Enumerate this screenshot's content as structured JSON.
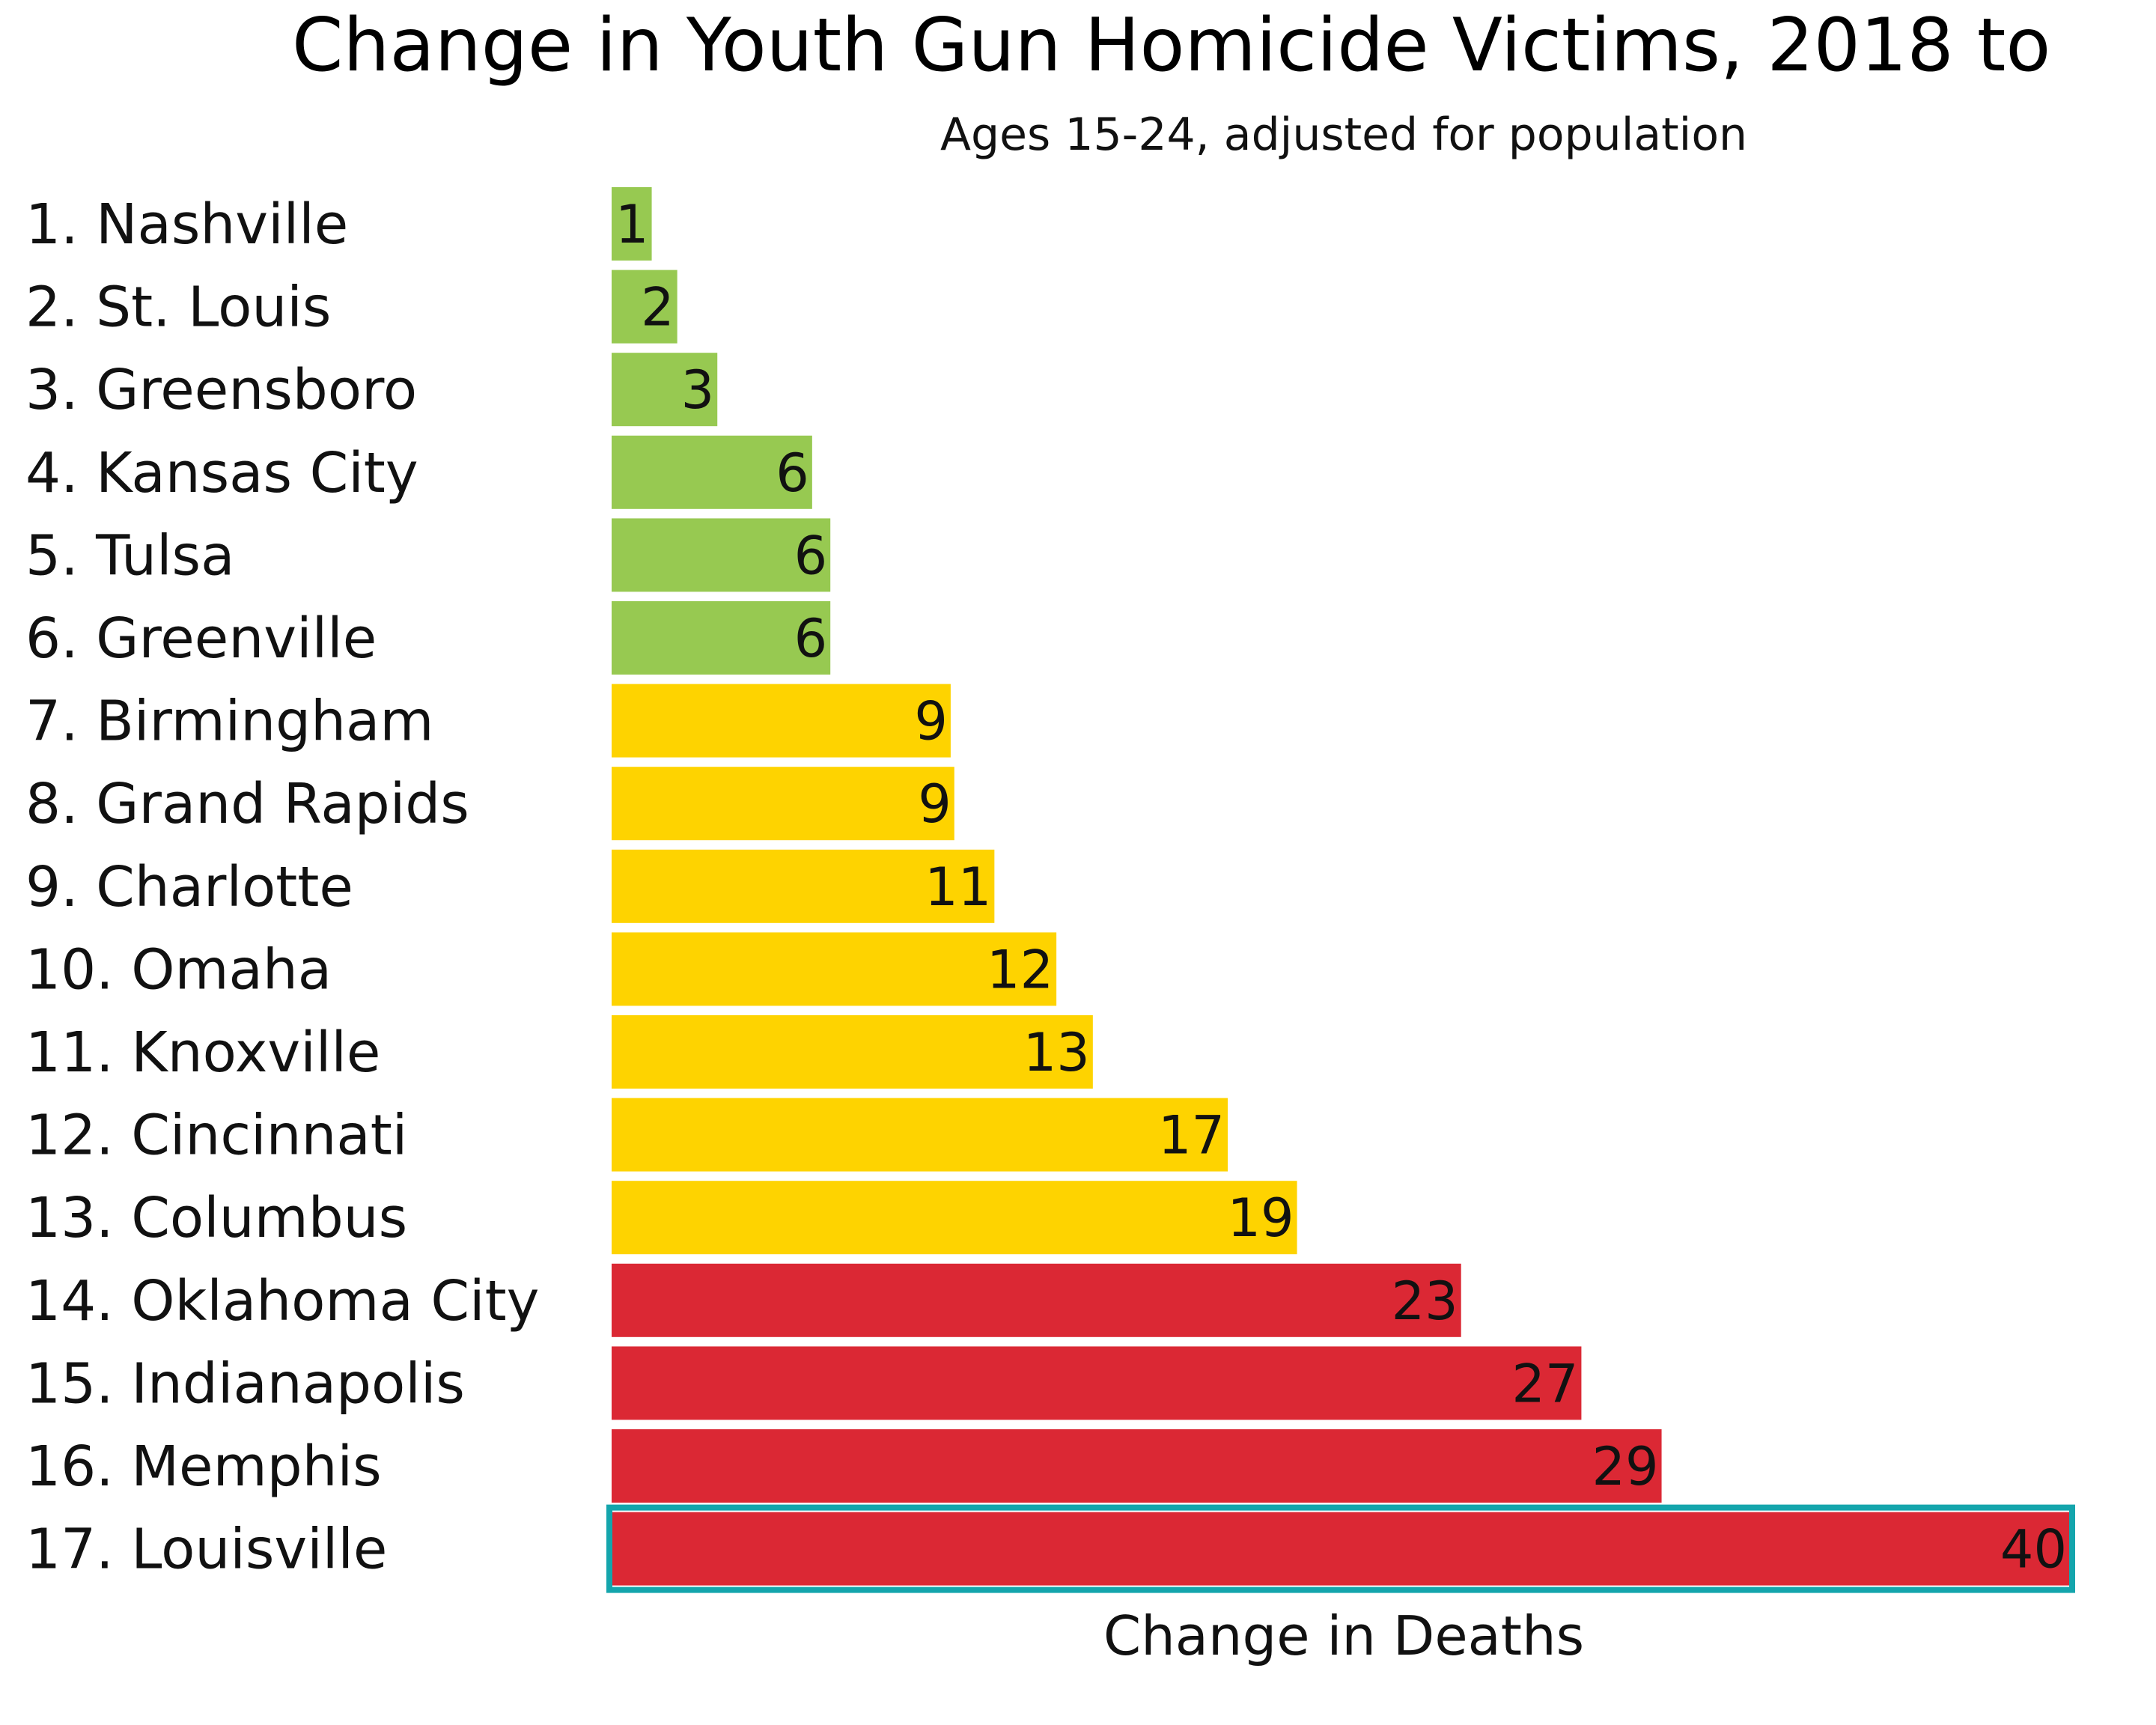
{
  "chart_data": {
    "type": "bar",
    "orientation": "horizontal",
    "title": "Change in Youth Gun Homicide Victims,  2018 to",
    "subtitle": "Ages 15-24, adjusted for population",
    "xlabel": "Change in Deaths",
    "ylabel": "",
    "xlim": [
      0,
      40
    ],
    "grid": false,
    "categories": [
      "1. Nashville",
      "2. St. Louis",
      "3. Greensboro",
      "4. Kansas City",
      "5. Tulsa",
      "6. Greenville",
      "7. Birmingham",
      "8. Grand Rapids",
      "9. Charlotte",
      "10. Omaha",
      "11. Knoxville",
      "12. Cincinnati",
      "13. Columbus",
      "14. Oklahoma City",
      "15. Indianapolis",
      "16. Memphis",
      "17. Louisville"
    ],
    "values": [
      1.1,
      1.8,
      2.9,
      5.5,
      6.0,
      6.0,
      9.3,
      9.4,
      10.5,
      12.2,
      13.2,
      16.9,
      18.8,
      23.3,
      26.6,
      28.8,
      40.0
    ],
    "value_labels": [
      "1",
      "2",
      "3",
      "6",
      "6",
      "6",
      "9",
      "9",
      "11",
      "12",
      "13",
      "17",
      "19",
      "23",
      "27",
      "29",
      "40"
    ],
    "bar_colors": [
      "green",
      "green",
      "green",
      "green",
      "green",
      "green",
      "yellow",
      "yellow",
      "yellow",
      "yellow",
      "yellow",
      "yellow",
      "yellow",
      "red",
      "red",
      "red",
      "red"
    ],
    "highlighted_category": "17. Louisville",
    "colors": {
      "green": "#97c951",
      "yellow": "#fed300",
      "red": "#db2834",
      "highlight": "#14a5ac",
      "text": "#111111"
    }
  }
}
